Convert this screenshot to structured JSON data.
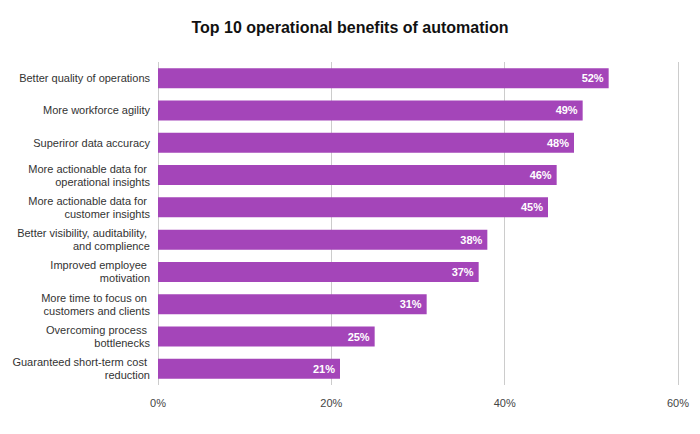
{
  "chart_data": {
    "type": "bar",
    "title": "Top 10 operational benefits of automation",
    "orientation": "horizontal",
    "categories": [
      "Better quality of operations",
      "More workforce agility",
      "Superiror data accuracy",
      "More actionable data for operational insights",
      "More actionable data for customer insights",
      "Better visibility, auditability, and complience",
      "Improved employee motivation",
      "More time to focus on customers and clients",
      "Overcoming process bottlenecks",
      "Guaranteed short-term cost reduction"
    ],
    "values": [
      52,
      49,
      48,
      46,
      45,
      38,
      37,
      31,
      25,
      21
    ],
    "value_labels": [
      "52%",
      "49%",
      "48%",
      "46%",
      "45%",
      "38%",
      "37%",
      "31%",
      "25%",
      "21%"
    ],
    "color": "#a445b9",
    "xlim": [
      0,
      60
    ],
    "xticks": [
      {
        "value": 0,
        "label": "0%"
      },
      {
        "value": 20,
        "label": "20%"
      },
      {
        "value": 40,
        "label": "40%"
      },
      {
        "value": 60,
        "label": "60%"
      }
    ],
    "grid": true,
    "data_labels": true
  }
}
